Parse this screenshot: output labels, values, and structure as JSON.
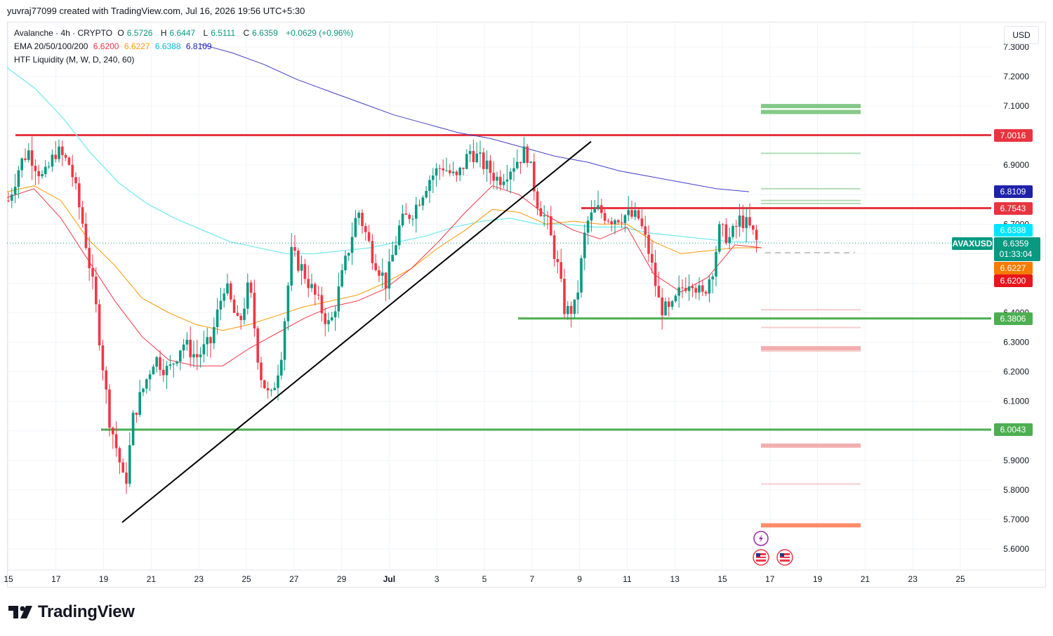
{
  "header": {
    "created_text": "yuvraj77099 created with TradingView.com, Jul 16, 2026 19:56 UTC+5:30"
  },
  "legend": {
    "symbol": "Avalanche · 4h · CRYPTO",
    "o_label": "O",
    "o_value": "6.5726",
    "h_label": "H",
    "h_value": "6.6447",
    "l_label": "L",
    "l_value": "6.5111",
    "c_label": "C",
    "c_value": "6.6359",
    "change": "+0.0629 (+0.96%)",
    "ema_label": "EMA 20/50/100/200",
    "ema20": "6.6200",
    "ema50": "6.6227",
    "ema100": "6.6388",
    "ema200": "6.8109",
    "htf_label": "HTF Liquidity (M, W, D, 240, 60)"
  },
  "currency_button": "USD",
  "brand": {
    "name": "TradingView"
  },
  "colors": {
    "up": "#089981",
    "down": "#f23645",
    "ema20": "#f23645",
    "ema50": "#ff9800",
    "ema100": "#80ebf0",
    "ema200": "#3f3fc8",
    "resistance": "#e8343f",
    "support": "#4caf50"
  },
  "chart_data": {
    "type": "candlestick",
    "symbol": "AVAXUSD",
    "ylim": [
      5.5,
      7.35
    ],
    "y_ticks": [
      "5.6000",
      "5.7000",
      "5.8000",
      "5.9000",
      "6.0000",
      "6.1000",
      "6.2000",
      "6.3000",
      "6.4000",
      "6.5000",
      "6.6000",
      "6.7000",
      "6.8000",
      "6.9000",
      "7.0000",
      "7.1000",
      "7.2000",
      "7.3000"
    ],
    "x_ticks": [
      "15",
      "17",
      "19",
      "21",
      "23",
      "25",
      "27",
      "29",
      "Jul",
      "3",
      "5",
      "7",
      "9",
      "11",
      "13",
      "15",
      "17",
      "19",
      "21",
      "23",
      "25"
    ],
    "price_tags": [
      {
        "label": "7.0016",
        "value": 7.0016,
        "color": "#e8343f"
      },
      {
        "label": "6.8109",
        "value": 6.8109,
        "color": "#1e22aa"
      },
      {
        "label": "6.7543",
        "value": 6.7543,
        "color": "#e8343f"
      },
      {
        "label": "6.6388",
        "value": 6.6388,
        "color": "#00e5ff"
      },
      {
        "label": "6.6227",
        "value": 6.6227,
        "color": "#f57c00"
      },
      {
        "label": "6.6200",
        "value": 6.62,
        "color": "#e8151d"
      },
      {
        "label": "6.3806",
        "value": 6.3806,
        "color": "#4caf50"
      },
      {
        "label": "6.0043",
        "value": 6.0043,
        "color": "#4caf50"
      }
    ],
    "current_price": {
      "symbol": "AVAXUSD",
      "price": "6.6359",
      "countdown": "01:33:04",
      "value": 6.6359
    },
    "horizontal_levels": [
      {
        "name": "resistance-7.0016",
        "value": 7.0016,
        "x_from": "Jun 15",
        "color": "#e8343f"
      },
      {
        "name": "resistance-6.7543",
        "value": 6.7543,
        "x_from": "Jul 9",
        "color": "#e8343f"
      },
      {
        "name": "support-6.3806",
        "value": 6.3806,
        "x_from": "Jul 8",
        "color": "#4caf50"
      },
      {
        "name": "support-6.0043",
        "value": 6.0043,
        "x_from": "Jun 19",
        "color": "#4caf50"
      }
    ],
    "trendline": {
      "from": {
        "date": "Jun 20",
        "value": 5.69
      },
      "to": {
        "date": "Jul 7",
        "value": 6.98
      }
    },
    "liquidity_levels": [
      {
        "value": 7.1,
        "side": "buy"
      },
      {
        "value": 7.08,
        "side": "buy"
      },
      {
        "value": 6.94,
        "side": "buy"
      },
      {
        "value": 6.82,
        "side": "buy"
      },
      {
        "value": 6.78,
        "side": "buy"
      },
      {
        "value": 6.77,
        "side": "buy"
      },
      {
        "value": 6.41,
        "side": "sell"
      },
      {
        "value": 6.35,
        "side": "sell"
      },
      {
        "value": 6.28,
        "side": "sell"
      },
      {
        "value": 6.27,
        "side": "sell"
      },
      {
        "value": 5.95,
        "side": "sell"
      },
      {
        "value": 5.82,
        "side": "sell"
      },
      {
        "value": 5.68,
        "side": "sell-strong"
      }
    ],
    "ema_series": {
      "ema20": [
        6.79,
        6.82,
        6.72,
        6.58,
        6.44,
        6.32,
        6.24,
        6.22,
        6.22,
        6.28,
        6.33,
        6.38,
        6.42,
        6.44,
        6.48,
        6.55,
        6.64,
        6.74,
        6.83,
        6.8,
        6.73,
        6.68,
        6.65,
        6.69,
        6.53,
        6.47,
        6.52,
        6.63,
        6.62
      ],
      "ema50": [
        6.81,
        6.83,
        6.78,
        6.65,
        6.56,
        6.45,
        6.4,
        6.36,
        6.34,
        6.36,
        6.39,
        6.42,
        6.44,
        6.46,
        6.5,
        6.55,
        6.62,
        6.68,
        6.75,
        6.74,
        6.7,
        6.71,
        6.7,
        6.7,
        6.64,
        6.6,
        6.61,
        6.62,
        6.62
      ],
      "ema100": [
        7.23,
        7.16,
        7.06,
        6.94,
        6.84,
        6.77,
        6.72,
        6.68,
        6.64,
        6.62,
        6.6,
        6.6,
        6.61,
        6.62,
        6.64,
        6.66,
        6.69,
        6.71,
        6.72,
        6.7,
        6.7,
        6.69,
        6.69,
        6.67,
        6.66,
        6.65,
        6.64,
        6.64
      ],
      "ema200": [
        7.31,
        7.28,
        7.24,
        7.19,
        7.15,
        7.11,
        7.07,
        7.04,
        7.01,
        6.99,
        6.96,
        6.93,
        6.91,
        6.88,
        6.86,
        6.84,
        6.82,
        6.81
      ],
      "ema200_dates": [
        "Jun 23",
        "Jun 24",
        "Jun 25",
        "Jun 26",
        "Jun 27",
        "Jun 28",
        "Jun 29",
        "Jun 30",
        "Jul 1",
        "Jul 2",
        "Jul 3",
        "Jul 5",
        "Jul 7",
        "Jul 9",
        "Jul 11",
        "Jul 13",
        "Jul 15",
        "Jul 16"
      ]
    }
  }
}
